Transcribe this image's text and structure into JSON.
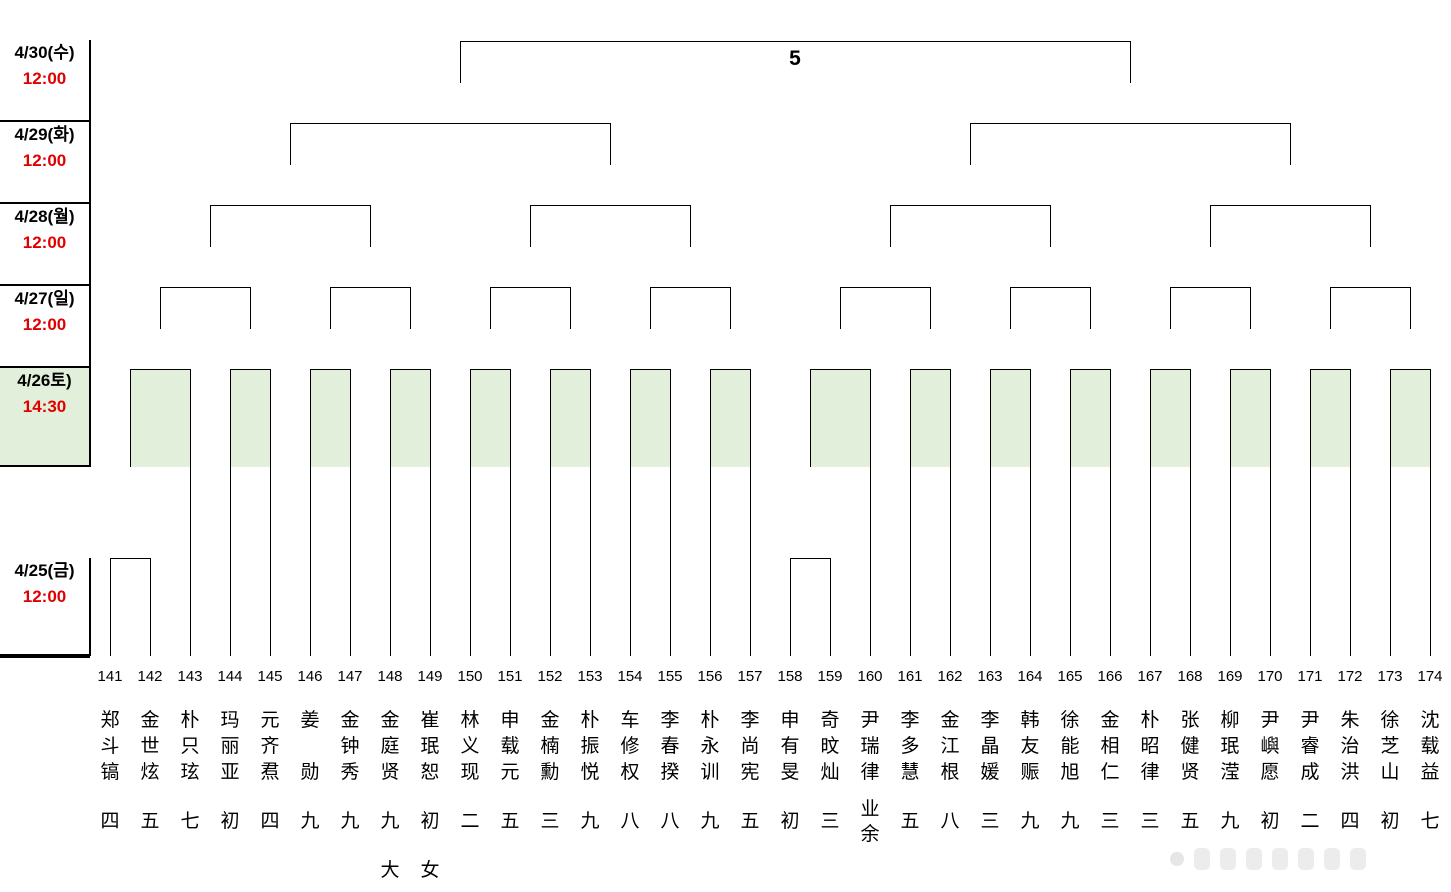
{
  "rounds": [
    {
      "date": "4/30(수)",
      "time": "12:00"
    },
    {
      "date": "4/29(화)",
      "time": "12:00"
    },
    {
      "date": "4/28(월)",
      "time": "12:00"
    },
    {
      "date": "4/27(일)",
      "time": "12:00"
    },
    {
      "date": "4/26토)",
      "time": "14:30"
    },
    {
      "date": "4/25(금)",
      "time": "12:00"
    }
  ],
  "final_label": "5",
  "players": [
    {
      "number": "141",
      "name": "郑斗镐",
      "rank": "四"
    },
    {
      "number": "142",
      "name": "金世炫",
      "rank": "五"
    },
    {
      "number": "143",
      "name": "朴只玹",
      "rank": "七"
    },
    {
      "number": "144",
      "name": "玛丽亚",
      "rank": "初"
    },
    {
      "number": "145",
      "name": "元齐焄",
      "rank": "四"
    },
    {
      "number": "146",
      "name": "姜 勋",
      "rank": "九"
    },
    {
      "number": "147",
      "name": "金钟秀",
      "rank": "九"
    },
    {
      "number": "148",
      "name": "金庭贤",
      "rank": "九大"
    },
    {
      "number": "149",
      "name": "崔珉恕",
      "rank": "初女"
    },
    {
      "number": "150",
      "name": "林义现",
      "rank": "二"
    },
    {
      "number": "151",
      "name": "申载元",
      "rank": "五"
    },
    {
      "number": "152",
      "name": "金楠勳",
      "rank": "三"
    },
    {
      "number": "153",
      "name": "朴振悦",
      "rank": "九"
    },
    {
      "number": "154",
      "name": "车修权",
      "rank": "八"
    },
    {
      "number": "155",
      "name": "李春揆",
      "rank": "八"
    },
    {
      "number": "156",
      "name": "朴永训",
      "rank": "九"
    },
    {
      "number": "157",
      "name": "李尚宪",
      "rank": "五"
    },
    {
      "number": "158",
      "name": "申有旻",
      "rank": "初"
    },
    {
      "number": "159",
      "name": "奇旼灿",
      "rank": "三"
    },
    {
      "number": "160",
      "name": "尹瑞律",
      "rank": "业余"
    },
    {
      "number": "161",
      "name": "李多慧",
      "rank": "五"
    },
    {
      "number": "162",
      "name": "金江根",
      "rank": "八"
    },
    {
      "number": "163",
      "name": "李晶媛",
      "rank": "三"
    },
    {
      "number": "164",
      "name": "韩友赈",
      "rank": "九"
    },
    {
      "number": "165",
      "name": "徐能旭",
      "rank": "九"
    },
    {
      "number": "166",
      "name": "金相仁",
      "rank": "三"
    },
    {
      "number": "167",
      "name": "朴昭律",
      "rank": "三"
    },
    {
      "number": "168",
      "name": "张健贤",
      "rank": "五"
    },
    {
      "number": "169",
      "name": "柳珉滢",
      "rank": "九"
    },
    {
      "number": "170",
      "name": "尹嶼愿",
      "rank": "初"
    },
    {
      "number": "171",
      "name": "尹睿成",
      "rank": "二"
    },
    {
      "number": "172",
      "name": "朱治洪",
      "rank": "四"
    },
    {
      "number": "173",
      "name": "徐芝山",
      "rank": "初"
    },
    {
      "number": "174",
      "name": "沈载益",
      "rank": "七"
    }
  ],
  "colors": {
    "time": "#e00000",
    "highlight": "#e2efda",
    "line": "#000000"
  },
  "watermark_icons": [
    "dot-icon",
    "bar-icon",
    "bar-icon",
    "bar-icon",
    "bar-icon",
    "bar-icon",
    "bar-icon",
    "bar-icon"
  ]
}
